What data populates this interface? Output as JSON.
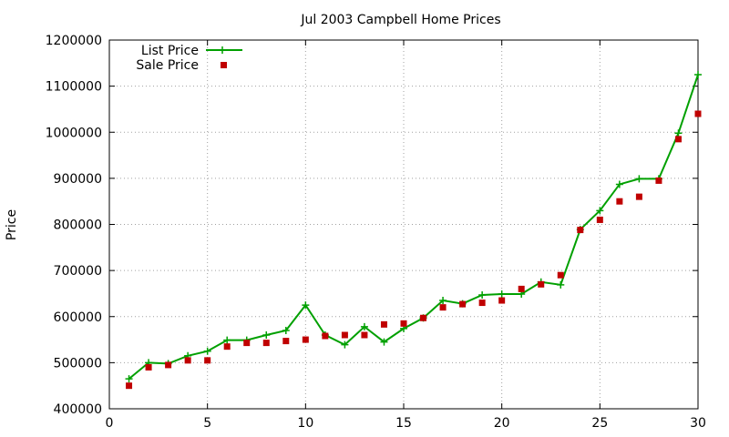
{
  "chart_data": {
    "type": "line",
    "title": "Jul 2003 Campbell Home Prices",
    "xlabel": "",
    "ylabel": "Price",
    "xlim": [
      0,
      30
    ],
    "ylim": [
      400000,
      1200000
    ],
    "xticks": [
      0,
      5,
      10,
      15,
      20,
      25,
      30
    ],
    "yticks": [
      400000,
      500000,
      600000,
      700000,
      800000,
      900000,
      1000000,
      1100000,
      1200000
    ],
    "grid": true,
    "legend_position": "top-left",
    "x": [
      1,
      2,
      3,
      4,
      5,
      6,
      7,
      8,
      9,
      10,
      11,
      12,
      13,
      14,
      15,
      16,
      17,
      18,
      19,
      20,
      21,
      22,
      23,
      24,
      25,
      26,
      27,
      28,
      29,
      30
    ],
    "series": [
      {
        "name": "List Price",
        "style": "line-plus",
        "color": "#00a000",
        "values": [
          465000,
          500000,
          498000,
          515000,
          525000,
          549000,
          549000,
          560000,
          570000,
          625000,
          560000,
          539000,
          578000,
          545000,
          574000,
          597000,
          635000,
          628000,
          647000,
          649000,
          649000,
          675000,
          669000,
          789000,
          830000,
          887000,
          899000,
          899000,
          998000,
          1125000
        ]
      },
      {
        "name": "Sale Price",
        "style": "square-points",
        "color": "#c00000",
        "values": [
          450000,
          490000,
          495000,
          505000,
          505000,
          535000,
          543000,
          543000,
          547000,
          550000,
          558000,
          560000,
          560000,
          583000,
          585000,
          597000,
          620000,
          627000,
          630000,
          635000,
          660000,
          670000,
          690000,
          788000,
          810000,
          850000,
          860000,
          895000,
          985000,
          1040000
        ]
      }
    ]
  }
}
